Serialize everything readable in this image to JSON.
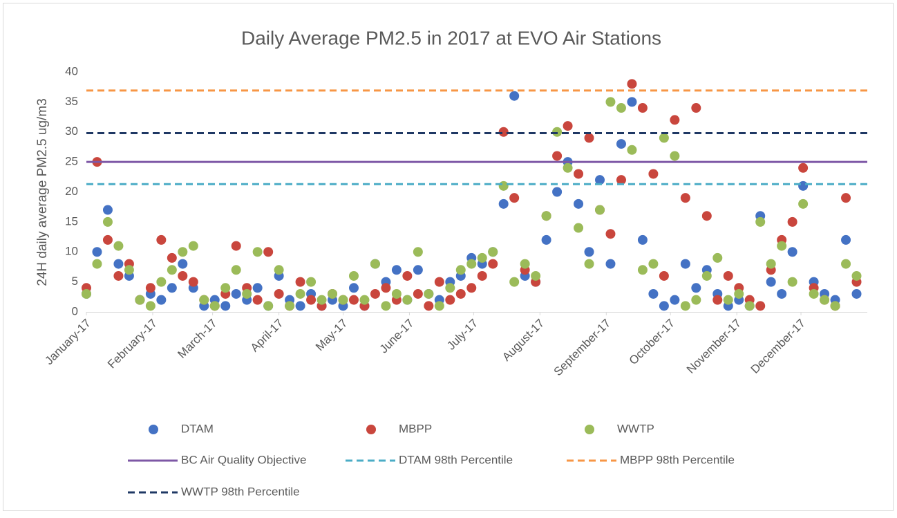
{
  "chart_data": {
    "type": "scatter",
    "title": "Daily Average PM2.5 in 2017 at EVO Air Stations",
    "y_label": "24H daily average PM2.5 ug/m3",
    "xlim": [
      0,
      365
    ],
    "xticks": [
      {
        "value": 0,
        "label": "January-17"
      },
      {
        "value": 31,
        "label": "February-17"
      },
      {
        "value": 59,
        "label": "March-17"
      },
      {
        "value": 90,
        "label": "April-17"
      },
      {
        "value": 120,
        "label": "May-17"
      },
      {
        "value": 151,
        "label": "June-17"
      },
      {
        "value": 181,
        "label": "July-17"
      },
      {
        "value": 212,
        "label": "August-17"
      },
      {
        "value": 243,
        "label": "September-17"
      },
      {
        "value": 273,
        "label": "October-17"
      },
      {
        "value": 304,
        "label": "November-17"
      },
      {
        "value": 334,
        "label": "December-17"
      }
    ],
    "ylim": [
      0,
      40
    ],
    "yticks": [
      0,
      5,
      10,
      15,
      20,
      25,
      30,
      35,
      40
    ],
    "grid": false,
    "x": [
      0,
      5,
      10,
      15,
      20,
      25,
      30,
      35,
      40,
      45,
      50,
      55,
      60,
      65,
      70,
      75,
      80,
      85,
      90,
      95,
      100,
      105,
      110,
      115,
      120,
      125,
      130,
      135,
      140,
      145,
      150,
      155,
      160,
      165,
      170,
      175,
      180,
      185,
      190,
      195,
      200,
      205,
      210,
      215,
      220,
      225,
      230,
      235,
      240,
      245,
      250,
      255,
      260,
      265,
      270,
      275,
      280,
      285,
      290,
      295,
      300,
      305,
      310,
      315,
      320,
      325,
      330,
      335,
      340,
      345,
      350,
      355,
      360
    ],
    "series": [
      {
        "name": "DTAM",
        "color": "#4472c4",
        "values": [
          3,
          10,
          17,
          8,
          6,
          2,
          3,
          2,
          4,
          8,
          4,
          1,
          2,
          1,
          3,
          2,
          4,
          1,
          6,
          2,
          1,
          3,
          1,
          2,
          1,
          4,
          1,
          8,
          5,
          7,
          2,
          7,
          3,
          2,
          5,
          6,
          9,
          8,
          10,
          18,
          36,
          6,
          5,
          12,
          20,
          25,
          18,
          10,
          22,
          8,
          28,
          35,
          12,
          3,
          1,
          2,
          8,
          4,
          7,
          3,
          1,
          2,
          1,
          16,
          5,
          3,
          10,
          21,
          5,
          3,
          2,
          12,
          3
        ]
      },
      {
        "name": "MBPP",
        "color": "#c9463d",
        "values": [
          4,
          25,
          12,
          6,
          8,
          2,
          4,
          12,
          9,
          6,
          5,
          2,
          1,
          3,
          11,
          4,
          2,
          10,
          3,
          1,
          5,
          2,
          1,
          3,
          2,
          2,
          1,
          3,
          4,
          2,
          6,
          3,
          1,
          5,
          2,
          3,
          4,
          6,
          8,
          30,
          19,
          7,
          5,
          16,
          26,
          31,
          23,
          29,
          17,
          13,
          22,
          38,
          34,
          23,
          6,
          32,
          19,
          34,
          16,
          2,
          6,
          4,
          2,
          1,
          7,
          12,
          15,
          24,
          4,
          2,
          1,
          19,
          5
        ]
      },
      {
        "name": "WWTP",
        "color": "#9bbb59",
        "values": [
          3,
          8,
          15,
          11,
          7,
          2,
          1,
          5,
          7,
          10,
          11,
          2,
          1,
          4,
          7,
          3,
          10,
          1,
          7,
          1,
          3,
          5,
          2,
          3,
          2,
          6,
          2,
          8,
          1,
          3,
          2,
          10,
          3,
          1,
          4,
          7,
          8,
          9,
          10,
          21,
          5,
          8,
          6,
          16,
          30,
          24,
          14,
          8,
          17,
          35,
          34,
          27,
          7,
          8,
          29,
          26,
          1,
          2,
          6,
          9,
          2,
          3,
          1,
          15,
          8,
          11,
          5,
          18,
          3,
          2,
          1,
          8,
          6
        ]
      }
    ],
    "reference_lines": [
      {
        "name": "BC Air Quality Objective",
        "value": 25,
        "color": "#7e58a6",
        "dashed": false
      },
      {
        "name": "DTAM 98th Percentile",
        "value": 21.3,
        "color": "#4bacc6",
        "dashed": true
      },
      {
        "name": "MBPP 98th Percentile",
        "value": 36.9,
        "color": "#f79646",
        "dashed": true
      },
      {
        "name": "WWTP 98th Percentile",
        "value": 29.8,
        "color": "#1f3864",
        "dashed": true
      }
    ]
  }
}
